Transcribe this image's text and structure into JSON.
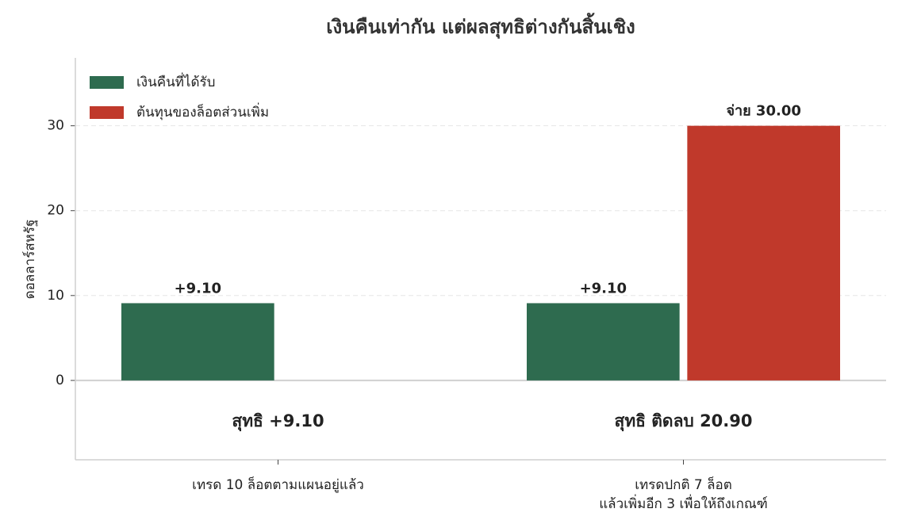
{
  "chart_data": {
    "type": "bar",
    "title": "เงินคืนเท่ากัน แต่ผลสุทธิต่างกันสิ้นเชิง",
    "y_label": "ดอลลาร์สหรัฐ",
    "categories": [
      [
        "เทรด 10 ล็อตตามแผนอยู่แล้ว"
      ],
      [
        "เทรดปกติ 7 ล็อต",
        "แล้วเพิ่มอีก 3 เพื่อให้ถึงเกณฑ์"
      ]
    ],
    "series": [
      {
        "name": "เงินคืนที่ได้รับ",
        "color": "#2e6b4f",
        "values": [
          9.1,
          9.1
        ],
        "value_labels": [
          "+9.10",
          "+9.10"
        ]
      },
      {
        "name": "ต้นทุนของล็อตส่วนเพิ่ม",
        "color": "#c0392b",
        "values": [
          null,
          30
        ],
        "value_labels": [
          null,
          "จ่าย 30.00"
        ]
      }
    ],
    "annotations": [
      {
        "text": "สุทธิ +9.10",
        "color": "#2e6b4f"
      },
      {
        "text": "สุทธิ ติดลบ 20.90",
        "color": "#c0392b"
      }
    ],
    "ylim": [
      -9.35,
      38
    ],
    "yticks": [
      0,
      10,
      20,
      30
    ],
    "grid": true,
    "legend": "upper-left"
  }
}
